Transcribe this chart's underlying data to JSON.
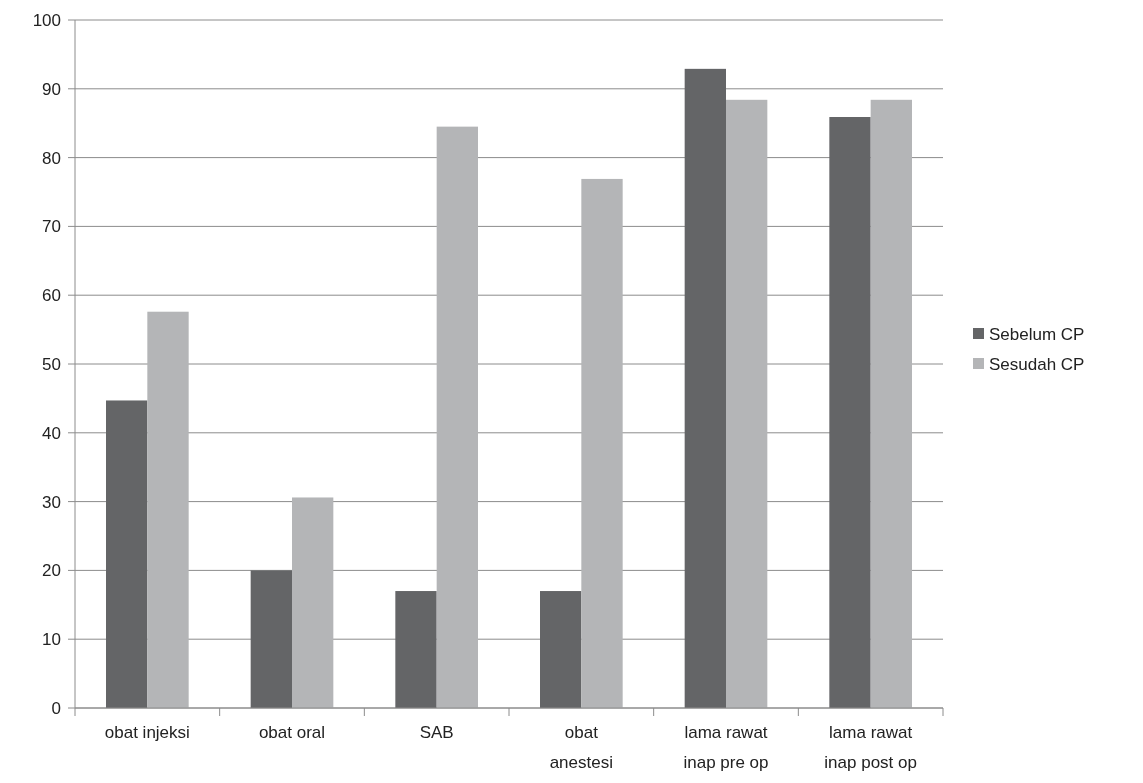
{
  "chart_data": {
    "type": "bar",
    "categories": [
      "obat injeksi",
      "obat oral",
      "SAB",
      "obat\nanestesi",
      "lama rawat\ninap pre op",
      "lama rawat\ninap post op"
    ],
    "series": [
      {
        "name": "Sebelum CP",
        "color": "#646567",
        "values": [
          44.7,
          20,
          17,
          17,
          92.9,
          85.9
        ]
      },
      {
        "name": "Sesudah CP",
        "color": "#b4b5b7",
        "values": [
          57.6,
          30.6,
          84.5,
          76.9,
          88.4,
          88.4
        ]
      }
    ],
    "ylim": [
      0,
      100
    ],
    "yticks": [
      0,
      10,
      20,
      30,
      40,
      50,
      60,
      70,
      80,
      90,
      100
    ],
    "grid": "y",
    "legend": "right"
  }
}
